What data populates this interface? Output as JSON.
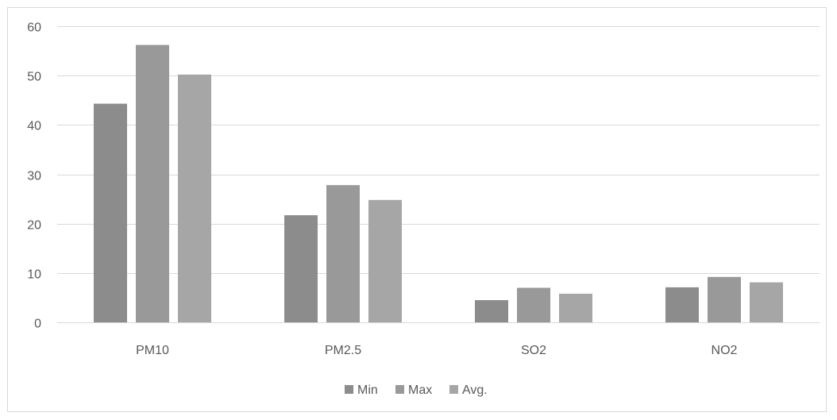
{
  "chart_data": {
    "type": "bar",
    "categories": [
      "PM10",
      "PM2.5",
      "SO2",
      "NO2"
    ],
    "series": [
      {
        "name": "Min",
        "values": [
          44.3,
          21.7,
          4.5,
          7.1
        ],
        "color": "#8c8c8c"
      },
      {
        "name": "Max",
        "values": [
          56.2,
          27.8,
          7.0,
          9.2
        ],
        "color": "#999999"
      },
      {
        "name": "Avg.",
        "values": [
          50.2,
          24.8,
          5.8,
          8.1
        ],
        "color": "#a6a6a6"
      }
    ],
    "y_ticks": [
      0,
      10,
      20,
      30,
      40,
      50,
      60
    ],
    "ylim": [
      0,
      60
    ],
    "grid": true,
    "legend_position": "bottom",
    "gridline_color": "#d9d9d9",
    "text_color": "#595959"
  }
}
